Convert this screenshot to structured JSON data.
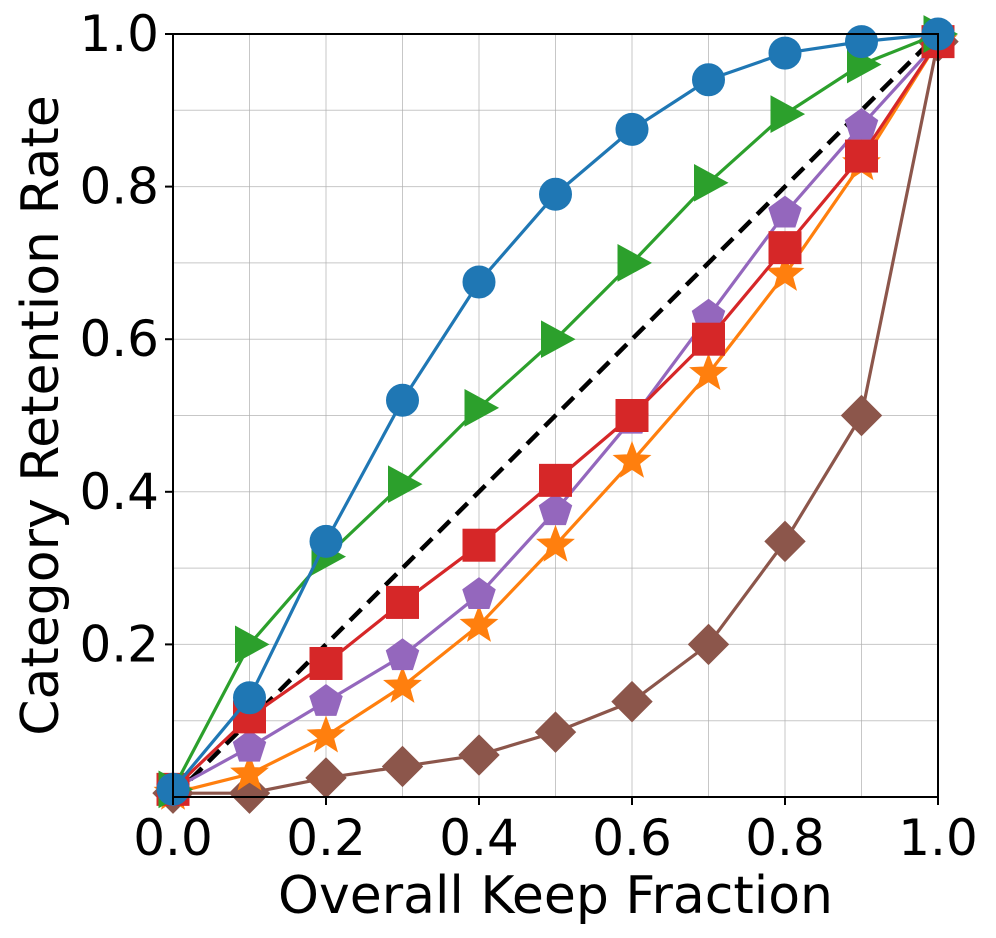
{
  "chart_data": {
    "type": "line",
    "title": "",
    "xlabel": "Overall Keep Fraction",
    "ylabel": "Category Retention Rate",
    "xlim": [
      0.0,
      1.0
    ],
    "ylim": [
      0.0,
      1.0
    ],
    "grid": true,
    "x_ticks": [
      "0.0",
      "0.2",
      "0.4",
      "0.6",
      "0.8",
      "1.0"
    ],
    "y_ticks": [
      "0.2",
      "0.4",
      "0.6",
      "0.8",
      "1.0"
    ],
    "minor_x": [
      0.1,
      0.3,
      0.5,
      0.7,
      0.9
    ],
    "minor_y": [
      0.1,
      0.3,
      0.5,
      0.7,
      0.9
    ],
    "x": [
      0.0,
      0.1,
      0.2,
      0.3,
      0.4,
      0.5,
      0.6,
      0.7,
      0.8,
      0.9,
      1.0
    ],
    "reference": {
      "name": "diagonal",
      "color": "#000000",
      "points": [
        [
          0,
          0
        ],
        [
          1,
          1
        ]
      ]
    },
    "series": [
      {
        "name": "blue-circle",
        "color": "#1f77b4",
        "marker": "circle",
        "values": [
          0.01,
          0.13,
          0.335,
          0.52,
          0.675,
          0.79,
          0.875,
          0.94,
          0.975,
          0.99,
          1.0
        ]
      },
      {
        "name": "green-triangle",
        "color": "#2ca02c",
        "marker": "triangle-right",
        "values": [
          0.01,
          0.2,
          0.315,
          0.41,
          0.51,
          0.6,
          0.7,
          0.805,
          0.895,
          0.96,
          1.0
        ]
      },
      {
        "name": "red-square",
        "color": "#d62728",
        "marker": "square",
        "values": [
          0.01,
          0.105,
          0.175,
          0.255,
          0.33,
          0.415,
          0.5,
          0.6,
          0.72,
          0.84,
          0.99
        ]
      },
      {
        "name": "purple-pentagon",
        "color": "#9467bd",
        "marker": "pentagon",
        "values": [
          0.01,
          0.065,
          0.125,
          0.185,
          0.265,
          0.375,
          0.495,
          0.63,
          0.765,
          0.88,
          0.99
        ]
      },
      {
        "name": "orange-star",
        "color": "#ff7f0e",
        "marker": "star",
        "values": [
          0.005,
          0.03,
          0.08,
          0.145,
          0.225,
          0.33,
          0.44,
          0.555,
          0.685,
          0.83,
          0.99
        ]
      },
      {
        "name": "brown-diamond",
        "color": "#8c564b",
        "marker": "diamond",
        "values": [
          0.005,
          0.005,
          0.025,
          0.04,
          0.055,
          0.085,
          0.125,
          0.2,
          0.335,
          0.5,
          0.99
        ]
      }
    ]
  }
}
